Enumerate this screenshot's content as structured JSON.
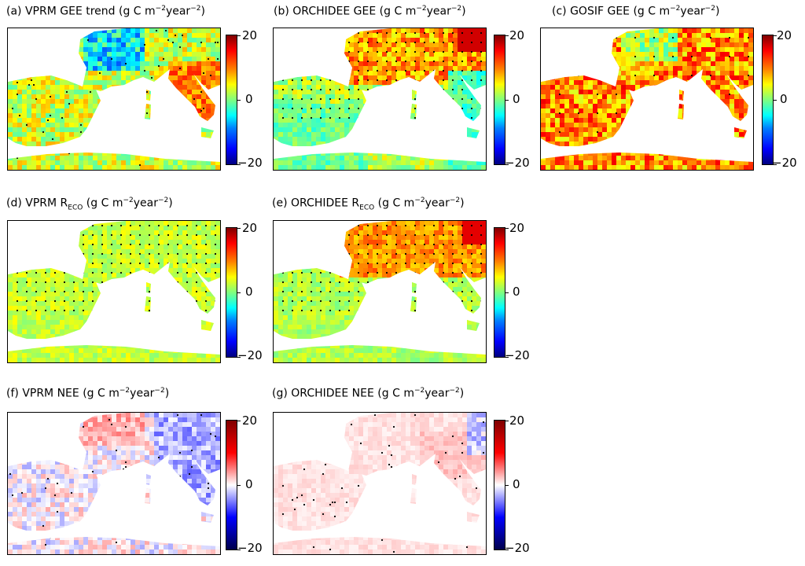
{
  "chart_data": [
    {
      "type": "heatmap",
      "panel_label": "(a)",
      "title_main": "VPRM GEE trend",
      "subscript": "",
      "units_pre": "(g C m",
      "units_exp1": "−2",
      "units_mid": "year",
      "units_exp2": "−2",
      "units_post": ")",
      "colormap": "jet",
      "clim": [
        -20,
        20
      ],
      "ticks": [
        "20",
        "0",
        "−20"
      ],
      "significance_dots": "sparse"
    },
    {
      "type": "heatmap",
      "panel_label": "(b)",
      "title_main": "ORCHIDEE GEE",
      "subscript": "",
      "units_pre": "(g C m",
      "units_exp1": "−2",
      "units_mid": "year",
      "units_exp2": "−2",
      "units_post": ")",
      "colormap": "jet",
      "clim": [
        -20,
        20
      ],
      "ticks": [
        "20",
        "0",
        "−20"
      ],
      "significance_dots": "grid"
    },
    {
      "type": "heatmap",
      "panel_label": "(c)",
      "title_main": "GOSIF GEE",
      "subscript": "",
      "units_pre": "(g C m",
      "units_exp1": "−2",
      "units_mid": "year",
      "units_exp2": "−2",
      "units_post": ")",
      "colormap": "jet",
      "clim": [
        -20,
        20
      ],
      "ticks": [
        "20",
        "0",
        "−20"
      ],
      "significance_dots": "dense"
    },
    {
      "type": "heatmap",
      "panel_label": "(d)",
      "title_main": "VPRM R",
      "subscript": "ECO",
      "units_pre": "(g C m",
      "units_exp1": "−2",
      "units_mid": "year",
      "units_exp2": "−2",
      "units_post": ")",
      "colormap": "jet",
      "clim": [
        -20,
        20
      ],
      "ticks": [
        "20",
        "0",
        "−20"
      ],
      "significance_dots": "grid"
    },
    {
      "type": "heatmap",
      "panel_label": "(e)",
      "title_main": "ORCHIDEE R",
      "subscript": "ECO",
      "units_pre": "(g C m",
      "units_exp1": "−2",
      "units_mid": "year",
      "units_exp2": "−2",
      "units_post": ")",
      "colormap": "jet",
      "clim": [
        -20,
        20
      ],
      "ticks": [
        "20",
        "0",
        "−20"
      ],
      "significance_dots": "grid"
    },
    {
      "type": "heatmap",
      "panel_label": "(f)",
      "title_main": "VPRM NEE",
      "subscript": "",
      "units_pre": "(g C m",
      "units_exp1": "−2",
      "units_mid": "year",
      "units_exp2": "−2",
      "units_post": ")",
      "colormap": "seismic",
      "clim": [
        -20,
        20
      ],
      "ticks": [
        "20",
        "0",
        "−20"
      ],
      "significance_dots": "sparse"
    },
    {
      "type": "heatmap",
      "panel_label": "(g)",
      "title_main": "ORCHIDEE NEE",
      "subscript": "",
      "units_pre": "(g C m",
      "units_exp1": "−2",
      "units_mid": "year",
      "units_exp2": "−2",
      "units_post": ")",
      "colormap": "seismic",
      "clim": [
        -20,
        20
      ],
      "ticks": [
        "20",
        "0",
        "−20"
      ],
      "significance_dots": "sparse"
    }
  ]
}
